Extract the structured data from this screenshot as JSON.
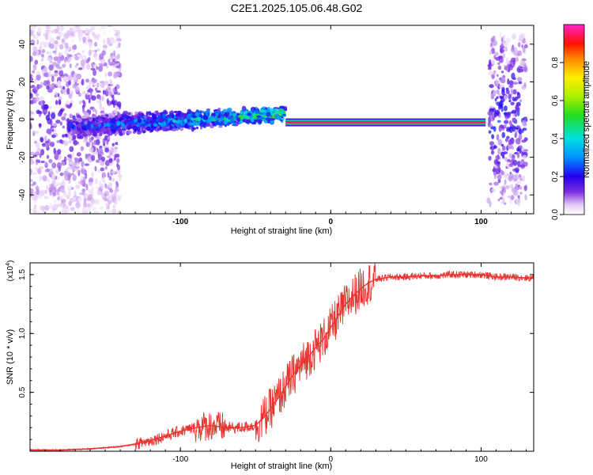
{
  "title": "C2E1.2025.105.06.48.G02",
  "chart_data": [
    {
      "type": "heatmap",
      "xlabel": "Height of straight line (km)",
      "ylabel": "Frequency (Hz)",
      "xlim": [
        -200,
        135
      ],
      "ylim": [
        -50,
        50
      ],
      "xticks": [
        -100,
        0,
        100
      ],
      "xtick_labels": [
        "-100",
        "0",
        "100"
      ],
      "yticks": [
        -40,
        -20,
        0,
        20,
        40
      ],
      "ytick_labels": [
        "-40",
        "-20",
        "0",
        "20",
        "40"
      ],
      "colorbar": {
        "label": "Normalized spectral amplitude",
        "range": [
          0,
          1
        ],
        "ticks": [
          0,
          0.2,
          0.4,
          0.6,
          0.8
        ],
        "tick_labels": [
          "0.0",
          "0.2",
          "0.4",
          "0.6",
          "0.8"
        ]
      },
      "features": [
        {
          "name": "diffuse low-amplitude scatter",
          "x_range": [
            -200,
            -140
          ],
          "freq_range": [
            -50,
            50
          ],
          "amplitude": 0.15
        },
        {
          "name": "broadened main band",
          "x_range": [
            -175,
            -30
          ],
          "freq_center_start": -4,
          "freq_center_end": 3,
          "amplitude": 0.35
        },
        {
          "name": "narrow carrier line",
          "x_range": [
            -30,
            103
          ],
          "freq_center": -1.5,
          "amplitude": 0.95
        },
        {
          "name": "right-side scatter",
          "x_range": [
            105,
            130
          ],
          "freq_range": [
            -45,
            45
          ],
          "amplitude": 0.2
        }
      ]
    },
    {
      "type": "line",
      "xlabel": "Height of straight line (km)",
      "ylabel": "SNR (10 * v/v)",
      "y_multiplier_label": "(x10",
      "y_multiplier_exponent": "4",
      "y_multiplier_suffix": ")",
      "xlim": [
        -200,
        135
      ],
      "ylim": [
        0,
        1.6
      ],
      "xticks": [
        -100,
        0,
        100
      ],
      "xtick_labels": [
        "-100",
        "0",
        "100"
      ],
      "yticks": [
        0.5,
        1.0,
        1.5
      ],
      "ytick_labels": [
        "0.5",
        "1.0",
        "1.5"
      ],
      "series": [
        {
          "name": "SNR",
          "color": "#e8332f",
          "x": [
            -200,
            -180,
            -160,
            -140,
            -130,
            -120,
            -110,
            -100,
            -90,
            -80,
            -70,
            -60,
            -50,
            -45,
            -40,
            -35,
            -30,
            -25,
            -20,
            -15,
            -10,
            -5,
            0,
            5,
            10,
            15,
            20,
            25,
            30,
            40,
            50,
            60,
            70,
            80,
            90,
            100,
            110,
            120,
            135
          ],
          "values": [
            0.01,
            0.01,
            0.02,
            0.04,
            0.06,
            0.09,
            0.13,
            0.17,
            0.2,
            0.22,
            0.2,
            0.2,
            0.22,
            0.28,
            0.36,
            0.45,
            0.55,
            0.65,
            0.73,
            0.8,
            0.88,
            0.95,
            1.05,
            1.15,
            1.25,
            1.32,
            1.38,
            1.43,
            1.46,
            1.48,
            1.48,
            1.49,
            1.49,
            1.5,
            1.5,
            1.5,
            1.48,
            1.48,
            1.47
          ]
        }
      ]
    }
  ]
}
